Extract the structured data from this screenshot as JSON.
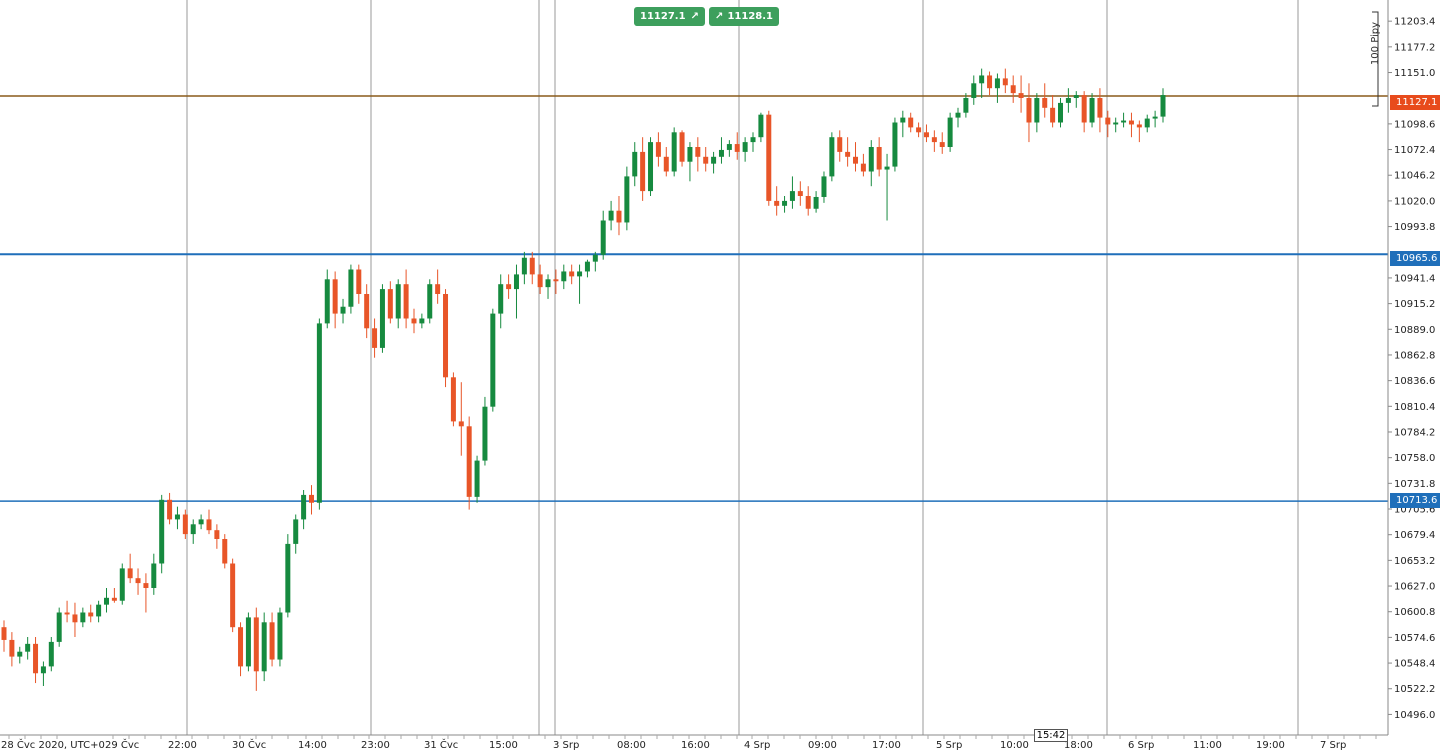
{
  "quote": {
    "bid": "11127.1",
    "ask": "11128.1",
    "bid_arrow": "↗",
    "ask_arrow": "↗"
  },
  "price_tags": {
    "current": "11127.1",
    "level_upper": "10965.6",
    "level_lower": "10713.6"
  },
  "pips_label": "100 Pipy",
  "crosshair_time": "15:42",
  "colors": {
    "up": "#168a3f",
    "down": "#e85528",
    "level": "#1f6fba",
    "current": "#8a5a1a",
    "tag_current": "#e84b1c"
  },
  "chart_data": {
    "type": "candlestick",
    "y_ticks": [
      "11203.4",
      "11177.2",
      "11151.0",
      "11098.6",
      "11072.4",
      "11046.2",
      "11020.0",
      "10993.8",
      "10941.4",
      "10915.2",
      "10889.0",
      "10862.8",
      "10836.6",
      "10810.4",
      "10784.2",
      "10758.0",
      "10731.8",
      "10705.6",
      "10679.4",
      "10653.2",
      "10627.0",
      "10600.8",
      "10574.6",
      "10548.4",
      "10522.2",
      "10496.0"
    ],
    "x_ticks": [
      "28 Čvc 2020, UTC+0",
      "29 Čvc",
      "22:00",
      "30 Čvc",
      "14:00",
      "23:00",
      "31 Čvc",
      "15:00",
      "3 Srp",
      "08:00",
      "16:00",
      "4 Srp",
      "09:00",
      "17:00",
      "5 Srp",
      "10:00",
      "18:00",
      "6 Srp",
      "11:00",
      "19:00",
      "7 Srp"
    ],
    "ylim": [
      10475,
      11225
    ],
    "levels": [
      10965.6,
      10713.6
    ],
    "current_price": 11127.1,
    "candles": [
      [
        10585,
        10592,
        10560,
        10572
      ],
      [
        10572,
        10580,
        10545,
        10555
      ],
      [
        10555,
        10565,
        10548,
        10560
      ],
      [
        10560,
        10575,
        10552,
        10568
      ],
      [
        10568,
        10575,
        10528,
        10538
      ],
      [
        10538,
        10550,
        10525,
        10545
      ],
      [
        10545,
        10575,
        10540,
        10570
      ],
      [
        10570,
        10605,
        10565,
        10600
      ],
      [
        10600,
        10612,
        10590,
        10598
      ],
      [
        10598,
        10610,
        10575,
        10590
      ],
      [
        10590,
        10605,
        10585,
        10600
      ],
      [
        10600,
        10608,
        10590,
        10596
      ],
      [
        10596,
        10612,
        10590,
        10608
      ],
      [
        10608,
        10625,
        10600,
        10615
      ],
      [
        10615,
        10625,
        10610,
        10612
      ],
      [
        10612,
        10650,
        10608,
        10645
      ],
      [
        10645,
        10660,
        10630,
        10635
      ],
      [
        10635,
        10645,
        10618,
        10630
      ],
      [
        10630,
        10640,
        10600,
        10625
      ],
      [
        10625,
        10660,
        10618,
        10650
      ],
      [
        10650,
        10720,
        10640,
        10715
      ],
      [
        10715,
        10722,
        10690,
        10695
      ],
      [
        10695,
        10708,
        10685,
        10700
      ],
      [
        10700,
        10705,
        10675,
        10680
      ],
      [
        10680,
        10695,
        10670,
        10690
      ],
      [
        10690,
        10700,
        10685,
        10695
      ],
      [
        10695,
        10705,
        10680,
        10684
      ],
      [
        10684,
        10690,
        10665,
        10675
      ],
      [
        10675,
        10680,
        10645,
        10650
      ],
      [
        10650,
        10655,
        10580,
        10585
      ],
      [
        10585,
        10590,
        10535,
        10545
      ],
      [
        10545,
        10600,
        10540,
        10595
      ],
      [
        10595,
        10605,
        10520,
        10540
      ],
      [
        10540,
        10600,
        10530,
        10590
      ],
      [
        10590,
        10600,
        10545,
        10552
      ],
      [
        10552,
        10605,
        10545,
        10600
      ],
      [
        10600,
        10680,
        10595,
        10670
      ],
      [
        10670,
        10700,
        10660,
        10695
      ],
      [
        10695,
        10725,
        10685,
        10720
      ],
      [
        10720,
        10730,
        10700,
        10712
      ],
      [
        10712,
        10900,
        10705,
        10895
      ],
      [
        10895,
        10950,
        10890,
        10940
      ],
      [
        10940,
        10948,
        10890,
        10905
      ],
      [
        10905,
        10920,
        10895,
        10912
      ],
      [
        10912,
        10955,
        10905,
        10950
      ],
      [
        10950,
        10955,
        10915,
        10925
      ],
      [
        10925,
        10935,
        10880,
        10890
      ],
      [
        10890,
        10900,
        10860,
        10870
      ],
      [
        10870,
        10935,
        10865,
        10930
      ],
      [
        10930,
        10938,
        10895,
        10900
      ],
      [
        10900,
        10940,
        10890,
        10935
      ],
      [
        10935,
        10950,
        10890,
        10900
      ],
      [
        10900,
        10910,
        10885,
        10895
      ],
      [
        10895,
        10905,
        10890,
        10900
      ],
      [
        10900,
        10940,
        10895,
        10935
      ],
      [
        10935,
        10950,
        10915,
        10925
      ],
      [
        10925,
        10930,
        10830,
        10840
      ],
      [
        10840,
        10845,
        10790,
        10795
      ],
      [
        10795,
        10835,
        10760,
        10790
      ],
      [
        10790,
        10800,
        10705,
        10718
      ],
      [
        10718,
        10760,
        10712,
        10755
      ],
      [
        10755,
        10820,
        10750,
        10810
      ],
      [
        10810,
        10910,
        10805,
        10905
      ],
      [
        10905,
        10945,
        10890,
        10935
      ],
      [
        10935,
        10945,
        10920,
        10930
      ],
      [
        10930,
        10955,
        10900,
        10945
      ],
      [
        10945,
        10968,
        10935,
        10962
      ],
      [
        10962,
        10968,
        10935,
        10945
      ],
      [
        10945,
        10955,
        10925,
        10932
      ],
      [
        10932,
        10945,
        10920,
        10940
      ],
      [
        10940,
        10950,
        10925,
        10938
      ],
      [
        10938,
        10955,
        10930,
        10948
      ],
      [
        10948,
        10955,
        10935,
        10943
      ],
      [
        10943,
        10955,
        10915,
        10948
      ],
      [
        10948,
        10960,
        10942,
        10958
      ],
      [
        10958,
        10968,
        10948,
        10965
      ],
      [
        10965,
        11010,
        10960,
        11000
      ],
      [
        11000,
        11020,
        10990,
        11010
      ],
      [
        11010,
        11025,
        10985,
        10998
      ],
      [
        10998,
        11055,
        10990,
        11045
      ],
      [
        11045,
        11080,
        11035,
        11070
      ],
      [
        11070,
        11085,
        11020,
        11030
      ],
      [
        11030,
        11085,
        11025,
        11080
      ],
      [
        11080,
        11090,
        11055,
        11065
      ],
      [
        11065,
        11075,
        11045,
        11050
      ],
      [
        11050,
        11095,
        11045,
        11090
      ],
      [
        11090,
        11092,
        11055,
        11060
      ],
      [
        11060,
        11080,
        11040,
        11075
      ],
      [
        11075,
        11085,
        11050,
        11065
      ],
      [
        11065,
        11075,
        11050,
        11058
      ],
      [
        11058,
        11070,
        11048,
        11065
      ],
      [
        11065,
        11085,
        11058,
        11072
      ],
      [
        11072,
        11082,
        11065,
        11078
      ],
      [
        11078,
        11090,
        11062,
        11070
      ],
      [
        11070,
        11085,
        11060,
        11080
      ],
      [
        11080,
        11090,
        11070,
        11085
      ],
      [
        11085,
        11110,
        11080,
        11108
      ],
      [
        11108,
        11112,
        11015,
        11020
      ],
      [
        11020,
        11035,
        11005,
        11015
      ],
      [
        11015,
        11025,
        11008,
        11020
      ],
      [
        11020,
        11045,
        11012,
        11030
      ],
      [
        11030,
        11040,
        11015,
        11025
      ],
      [
        11025,
        11035,
        11005,
        11012
      ],
      [
        11012,
        11030,
        11008,
        11024
      ],
      [
        11024,
        11050,
        11018,
        11045
      ],
      [
        11045,
        11090,
        11040,
        11085
      ],
      [
        11085,
        11092,
        11060,
        11070
      ],
      [
        11070,
        11085,
        11055,
        11065
      ],
      [
        11065,
        11080,
        11050,
        11058
      ],
      [
        11058,
        11068,
        11045,
        11050
      ],
      [
        11050,
        11082,
        11035,
        11075
      ],
      [
        11075,
        11085,
        11045,
        11052
      ],
      [
        11052,
        11068,
        11000,
        11055
      ],
      [
        11055,
        11105,
        11050,
        11100
      ],
      [
        11100,
        11112,
        11085,
        11105
      ],
      [
        11105,
        11110,
        11090,
        11095
      ],
      [
        11095,
        11100,
        11085,
        11090
      ],
      [
        11090,
        11098,
        11080,
        11085
      ],
      [
        11085,
        11092,
        11070,
        11080
      ],
      [
        11080,
        11090,
        11068,
        11075
      ],
      [
        11075,
        11110,
        11070,
        11105
      ],
      [
        11105,
        11115,
        11095,
        11110
      ],
      [
        11110,
        11130,
        11105,
        11125
      ],
      [
        11125,
        11148,
        11118,
        11140
      ],
      [
        11140,
        11155,
        11125,
        11148
      ],
      [
        11148,
        11152,
        11128,
        11135
      ],
      [
        11135,
        11150,
        11120,
        11145
      ],
      [
        11145,
        11155,
        11130,
        11138
      ],
      [
        11138,
        11148,
        11120,
        11130
      ],
      [
        11130,
        11148,
        11110,
        11125
      ],
      [
        11125,
        11140,
        11080,
        11100
      ],
      [
        11100,
        11130,
        11090,
        11125
      ],
      [
        11125,
        11140,
        11105,
        11115
      ],
      [
        11115,
        11128,
        11095,
        11100
      ],
      [
        11100,
        11125,
        11095,
        11120
      ],
      [
        11120,
        11135,
        11110,
        11125
      ],
      [
        11125,
        11132,
        11115,
        11128
      ],
      [
        11128,
        11132,
        11090,
        11100
      ],
      [
        11100,
        11130,
        11095,
        11125
      ],
      [
        11125,
        11135,
        11090,
        11105
      ],
      [
        11105,
        11112,
        11085,
        11098
      ],
      [
        11098,
        11105,
        11090,
        11100
      ],
      [
        11100,
        11110,
        11095,
        11102
      ],
      [
        11102,
        11110,
        11085,
        11098
      ],
      [
        11098,
        11102,
        11080,
        11095
      ],
      [
        11095,
        11108,
        11090,
        11104
      ],
      [
        11104,
        11112,
        11095,
        11106
      ],
      [
        11106,
        11135,
        11100,
        11128
      ]
    ]
  }
}
